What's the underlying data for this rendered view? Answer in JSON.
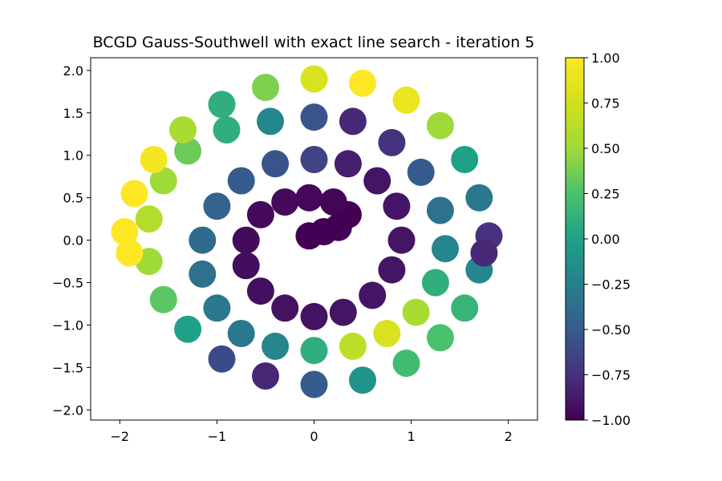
{
  "chart_data": {
    "type": "scatter",
    "title": "BCGD Gauss-Southwell with exact line search - iteration 5",
    "xlabel": "",
    "ylabel": "",
    "xlim": [
      -2.3,
      2.3
    ],
    "ylim": [
      -2.12,
      2.15
    ],
    "xticks": [
      -2,
      -1,
      0,
      1,
      2
    ],
    "xtick_labels": [
      "−2",
      "−1",
      "0",
      "1",
      "2"
    ],
    "yticks": [
      -2.0,
      -1.5,
      -1.0,
      -0.5,
      0.0,
      0.5,
      1.0,
      1.5,
      2.0
    ],
    "ytick_labels": [
      "−2.0",
      "−1.5",
      "−1.0",
      "−0.5",
      "0.0",
      "0.5",
      "1.0",
      "1.5",
      "2.0"
    ],
    "colormap": "viridis",
    "color_range": [
      -1.0,
      1.0
    ],
    "colorbar_ticks": [
      -1.0,
      -0.75,
      -0.5,
      -0.25,
      0.0,
      0.25,
      0.5,
      0.75,
      1.0
    ],
    "colorbar_tick_labels": [
      "−1.00",
      "−0.75",
      "−0.50",
      "−0.25",
      "0.00",
      "0.25",
      "0.50",
      "0.75",
      "1.00"
    ],
    "grid": false,
    "series": [
      {
        "points": [
          [
            -0.05,
            0.05,
            -1.0
          ],
          [
            0.1,
            0.1,
            -1.0
          ],
          [
            0.25,
            0.15,
            -1.0
          ],
          [
            0.35,
            0.3,
            -1.0
          ],
          [
            0.2,
            0.45,
            -0.98
          ],
          [
            -0.05,
            0.5,
            -0.97
          ],
          [
            -0.3,
            0.45,
            -0.96
          ],
          [
            -0.55,
            0.3,
            -0.96
          ],
          [
            -0.7,
            0.0,
            -0.95
          ],
          [
            -0.7,
            -0.3,
            -0.94
          ],
          [
            -0.55,
            -0.6,
            -0.93
          ],
          [
            -0.3,
            -0.8,
            -0.92
          ],
          [
            0.0,
            -0.9,
            -0.91
          ],
          [
            0.3,
            -0.85,
            -0.9
          ],
          [
            0.6,
            -0.65,
            -0.9
          ],
          [
            0.8,
            -0.35,
            -0.9
          ],
          [
            0.9,
            0.0,
            -0.9
          ],
          [
            0.85,
            0.4,
            -0.9
          ],
          [
            0.65,
            0.7,
            -0.9
          ],
          [
            0.35,
            0.9,
            -0.85
          ],
          [
            0.0,
            0.95,
            -0.65
          ],
          [
            -0.4,
            0.9,
            -0.55
          ],
          [
            -0.75,
            0.7,
            -0.5
          ],
          [
            -1.0,
            0.4,
            -0.45
          ],
          [
            -1.15,
            0.0,
            -0.4
          ],
          [
            -1.15,
            -0.4,
            -0.35
          ],
          [
            -1.0,
            -0.8,
            -0.3
          ],
          [
            -0.75,
            -1.1,
            -0.3
          ],
          [
            -0.4,
            -1.25,
            -0.2
          ],
          [
            0.0,
            -1.3,
            0.1
          ],
          [
            0.4,
            -1.25,
            0.65
          ],
          [
            0.75,
            -1.1,
            0.8
          ],
          [
            1.05,
            -0.85,
            0.55
          ],
          [
            1.25,
            -0.5,
            0.1
          ],
          [
            1.35,
            -0.1,
            -0.2
          ],
          [
            1.3,
            0.35,
            -0.35
          ],
          [
            1.1,
            0.8,
            -0.5
          ],
          [
            0.8,
            1.15,
            -0.75
          ],
          [
            0.4,
            1.4,
            -0.8
          ],
          [
            0.0,
            1.45,
            -0.55
          ],
          [
            -0.45,
            1.4,
            -0.2
          ],
          [
            -0.9,
            1.3,
            0.1
          ],
          [
            -1.3,
            1.05,
            0.35
          ],
          [
            -1.55,
            0.7,
            0.5
          ],
          [
            -1.7,
            0.25,
            0.6
          ],
          [
            -1.7,
            -0.25,
            0.5
          ],
          [
            -1.55,
            -0.7,
            0.3
          ],
          [
            -1.3,
            -1.05,
            0.0
          ],
          [
            -0.95,
            -1.4,
            -0.6
          ],
          [
            -0.5,
            -1.6,
            -0.8
          ],
          [
            0.0,
            -1.7,
            -0.5
          ],
          [
            0.5,
            -1.65,
            -0.1
          ],
          [
            0.95,
            -1.45,
            0.2
          ],
          [
            1.3,
            -1.15,
            0.25
          ],
          [
            1.55,
            -0.8,
            0.15
          ],
          [
            1.7,
            -0.35,
            -0.2
          ],
          [
            1.8,
            0.05,
            -0.75
          ],
          [
            1.75,
            -0.15,
            -0.8
          ],
          [
            1.7,
            0.5,
            -0.3
          ],
          [
            1.55,
            0.95,
            0.0
          ],
          [
            1.3,
            1.35,
            0.5
          ],
          [
            0.95,
            1.65,
            0.9
          ],
          [
            0.5,
            1.85,
            1.0
          ],
          [
            0.0,
            1.9,
            0.8
          ],
          [
            -0.5,
            1.8,
            0.4
          ],
          [
            -0.95,
            1.6,
            0.1
          ],
          [
            -1.35,
            1.3,
            0.55
          ],
          [
            -1.65,
            0.95,
            0.95
          ],
          [
            -1.85,
            0.55,
            1.0
          ],
          [
            -1.95,
            0.1,
            1.0
          ],
          [
            -1.9,
            -0.15,
            1.0
          ]
        ]
      }
    ]
  }
}
